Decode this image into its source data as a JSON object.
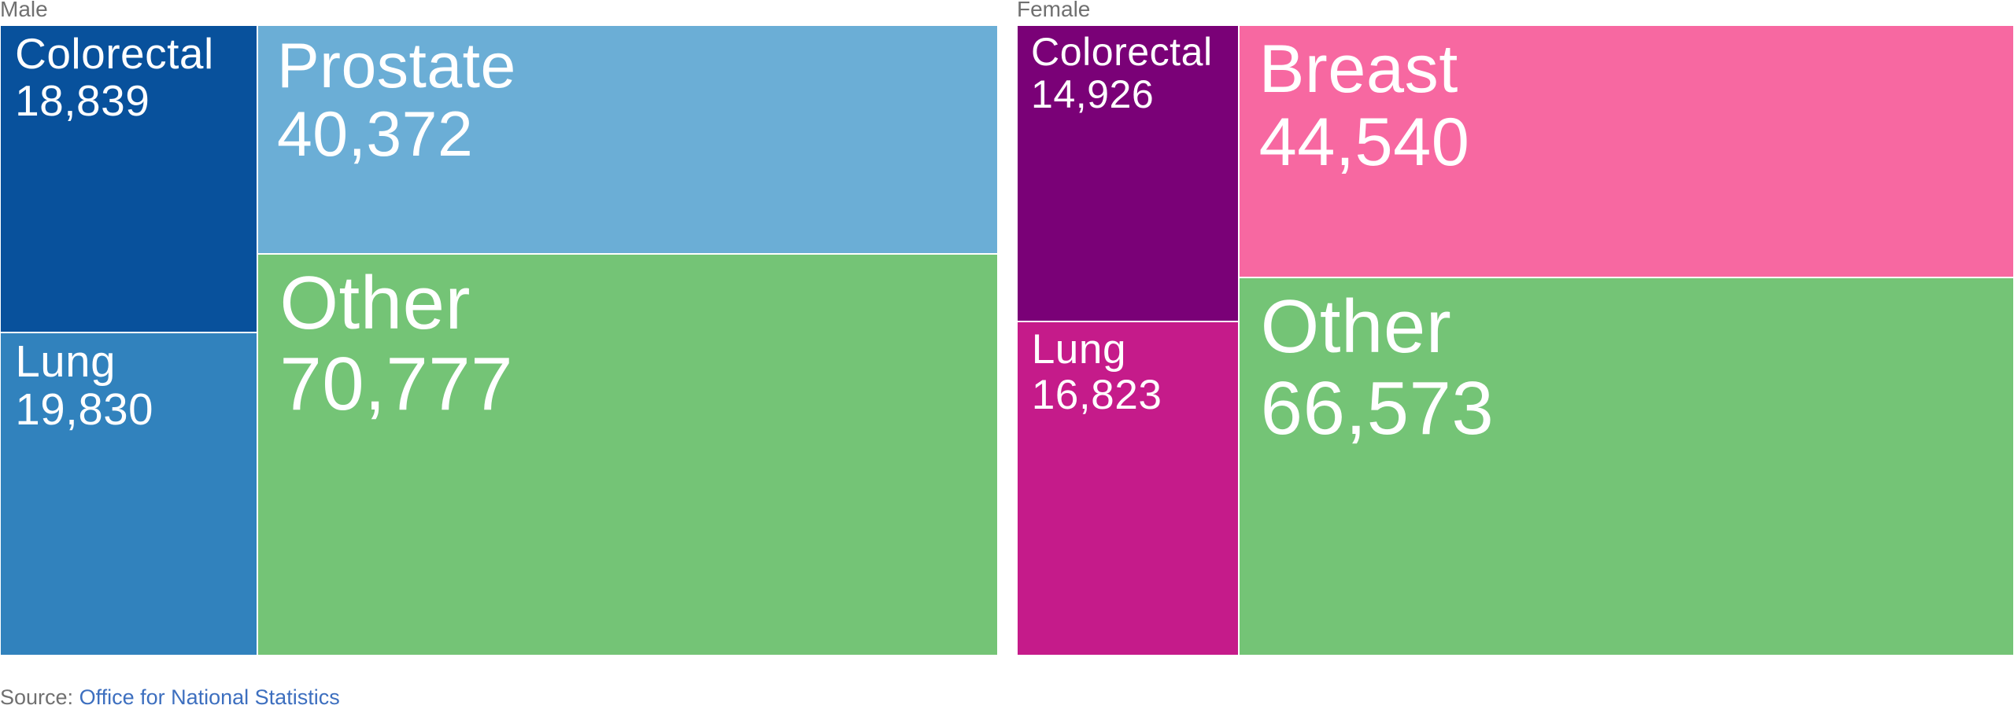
{
  "source": {
    "prefix": "Source: ",
    "link_text": "Office for National Statistics"
  },
  "colors": {
    "male_colorectal": "#08519c",
    "male_lung": "#3182bd",
    "male_prostate": "#6baed6",
    "other": "#74c476",
    "female_colorectal": "#7a0177",
    "female_lung": "#c51b8a",
    "female_breast": "#f768a1"
  },
  "chart_data": [
    {
      "type": "treemap",
      "title": "Male",
      "items": [
        {
          "label": "Colorectal",
          "value": 18839,
          "display": "18,839",
          "color": "#08519c"
        },
        {
          "label": "Lung",
          "value": 19830,
          "display": "19,830",
          "color": "#3182bd"
        },
        {
          "label": "Prostate",
          "value": 40372,
          "display": "40,372",
          "color": "#6baed6"
        },
        {
          "label": "Other",
          "value": 70777,
          "display": "70,777",
          "color": "#74c476"
        }
      ]
    },
    {
      "type": "treemap",
      "title": "Female",
      "items": [
        {
          "label": "Colorectal",
          "value": 14926,
          "display": "14,926",
          "color": "#7a0177"
        },
        {
          "label": "Lung",
          "value": 16823,
          "display": "16,823",
          "color": "#c51b8a"
        },
        {
          "label": "Breast",
          "value": 44540,
          "display": "44,540",
          "color": "#f768a1"
        },
        {
          "label": "Other",
          "value": 66573,
          "display": "66,573",
          "color": "#74c476"
        }
      ]
    }
  ]
}
